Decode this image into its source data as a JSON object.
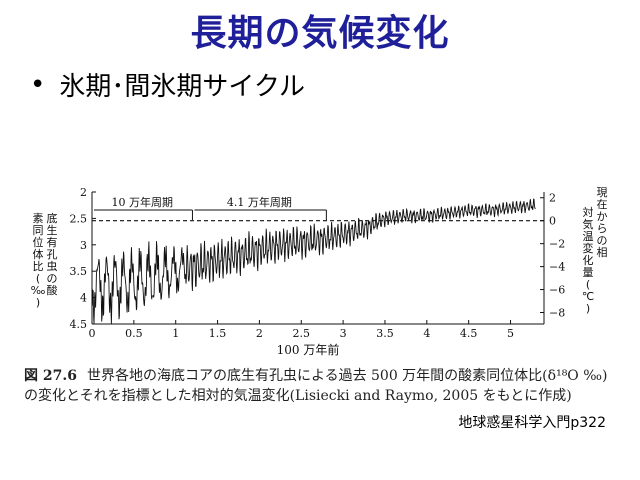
{
  "slide": {
    "title": "長期の気候変化",
    "bullet": "氷期･間氷期サイクル",
    "bullet_marker": "•",
    "source": "地球惑星科学入門p322"
  },
  "caption": {
    "figure_no": "図 27.6",
    "text": "世界各地の海底コアの底生有孔虫による過去 500 万年間の酸素同位体比(δ¹⁸O ‰)の変化とそれを指標とした相対的気温変化(Lisiecki and Raymo, 2005 をもとに作成)"
  },
  "chart_data": {
    "type": "line",
    "xlabel": "100 万年前",
    "ylabel_left": "底生有孔虫の酸素同位体比(‰)",
    "ylabel_right": "現在からの相対気温変化量(℃)",
    "xlim": [
      0,
      5.4
    ],
    "ylim_left": [
      2,
      4.5
    ],
    "ylim_left_inverted": true,
    "ylim_right": [
      -9,
      2.5
    ],
    "x_ticks": [
      "0",
      "0.5",
      "1",
      "1.5",
      "2",
      "2.5",
      "3",
      "3.5",
      "4",
      "4.5",
      "5"
    ],
    "y_left_ticks": [
      "2",
      "2.5",
      "3",
      "3.5",
      "4",
      "4.5"
    ],
    "y_right_ticks": [
      "2",
      "0",
      "−2",
      "−4",
      "−6",
      "−8"
    ],
    "reference_line": {
      "y_left": 2.55,
      "y_right": 0
    },
    "annotations": [
      {
        "label": "10 万年周期",
        "x_from": 0,
        "x_to": 1.2
      },
      {
        "label": "4.1 万年周期",
        "x_from": 1.2,
        "x_to": 2.8
      }
    ],
    "series": [
      {
        "x": [
          0,
          0.25,
          0.5,
          0.75,
          1.0,
          1.25,
          1.5,
          1.75,
          2.0,
          2.25,
          2.5,
          2.75,
          3.0,
          3.25,
          3.5,
          3.75,
          4.0,
          4.25,
          4.5,
          4.75,
          5.0,
          5.3
        ],
        "y_mean": [
          3.8,
          3.75,
          3.7,
          3.6,
          3.5,
          3.4,
          3.3,
          3.2,
          3.1,
          3.0,
          2.95,
          2.9,
          2.8,
          2.7,
          2.5,
          2.45,
          2.45,
          2.4,
          2.35,
          2.35,
          2.3,
          2.25
        ],
        "y_amplitude": [
          0.65,
          0.65,
          0.6,
          0.6,
          0.45,
          0.4,
          0.38,
          0.36,
          0.34,
          0.32,
          0.3,
          0.28,
          0.25,
          0.2,
          0.15,
          0.13,
          0.13,
          0.12,
          0.12,
          0.12,
          0.12,
          0.12
        ],
        "color": "#111111"
      }
    ]
  }
}
